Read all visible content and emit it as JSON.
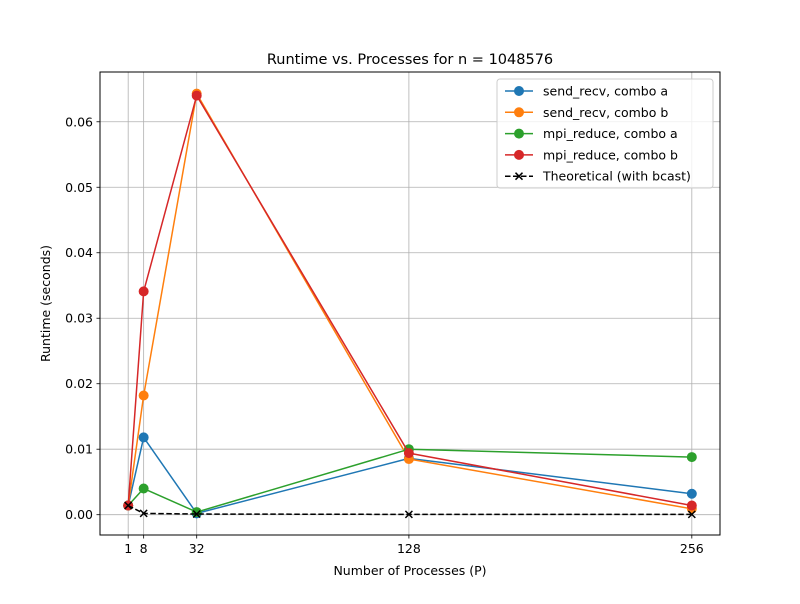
{
  "chart_data": {
    "type": "line",
    "title": "Runtime vs. Processes for n = 1048576",
    "xlabel": "Number of Processes (P)",
    "ylabel": "Runtime (seconds)",
    "x": [
      1,
      8,
      32,
      128,
      256
    ],
    "xticks": [
      1,
      8,
      32,
      128,
      256
    ],
    "xlim": [
      -11.75,
      268.75
    ],
    "yticks": [
      0.0,
      0.01,
      0.02,
      0.03,
      0.04,
      0.05,
      0.06
    ],
    "ytick_labels": [
      "0.00",
      "0.01",
      "0.02",
      "0.03",
      "0.04",
      "0.05",
      "0.06"
    ],
    "ylim": [
      -0.0031,
      0.0676
    ],
    "grid": true,
    "legend_position": "top-right",
    "series": [
      {
        "name": "send_recv, combo a",
        "color": "#1f77b4",
        "marker": "circle",
        "dash": "solid",
        "values": [
          0.0014,
          0.0118,
          0.0002,
          0.0086,
          0.0032
        ]
      },
      {
        "name": "send_recv, combo b",
        "color": "#ff7f0e",
        "marker": "circle",
        "dash": "solid",
        "values": [
          0.0014,
          0.0182,
          0.0643,
          0.0085,
          0.0009
        ]
      },
      {
        "name": "mpi_reduce, combo a",
        "color": "#2ca02c",
        "marker": "circle",
        "dash": "solid",
        "values": [
          0.0014,
          0.004,
          0.0004,
          0.01,
          0.0088
        ]
      },
      {
        "name": "mpi_reduce, combo b",
        "color": "#d62728",
        "marker": "circle",
        "dash": "solid",
        "values": [
          0.0014,
          0.0341,
          0.064,
          0.0094,
          0.0014
        ]
      },
      {
        "name": "Theoretical (with bcast)",
        "color": "#000000",
        "marker": "x",
        "dash": "dashed",
        "values": [
          0.0014,
          0.0002,
          0.0001,
          5e-05,
          5e-05
        ]
      }
    ]
  }
}
